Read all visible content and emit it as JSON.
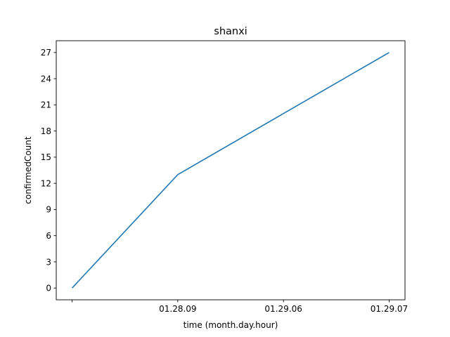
{
  "chart_data": {
    "type": "line",
    "title": "shanxi",
    "xlabel": "time (month.day.hour)",
    "ylabel": "confirmedCount",
    "categories": [
      "",
      "01.28.09",
      "01.29.06",
      "01.29.07"
    ],
    "series": [
      {
        "values": [
          0,
          13,
          20,
          27
        ]
      }
    ],
    "ylim": [
      -1.35,
      28.35
    ],
    "yticks": [
      0,
      3,
      6,
      9,
      12,
      15,
      18,
      21,
      24,
      27
    ],
    "grid": false,
    "line_color": "#1f77b4"
  }
}
